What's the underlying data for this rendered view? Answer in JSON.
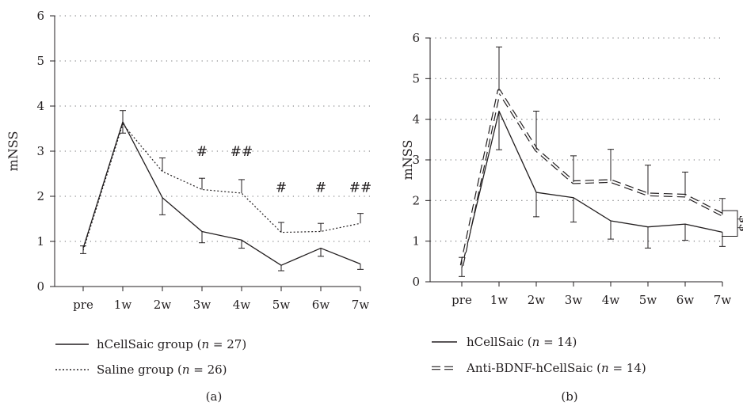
{
  "chart_data": [
    {
      "type": "line",
      "panel_label": "(a)",
      "ylabel": "mNSS",
      "xlabel": "",
      "categories": [
        "pre",
        "1w",
        "2w",
        "3w",
        "4w",
        "5w",
        "6w",
        "7w"
      ],
      "ylim": [
        0,
        6
      ],
      "yticks": [
        "0",
        "1",
        "2",
        "3",
        "4",
        "5",
        "6"
      ],
      "grid": "horizontal-dotted",
      "series": [
        {
          "name": "hCellSaic group (",
          "n_label": "n",
          "n_value": " = 27)",
          "style": "solid",
          "values": [
            0.85,
            3.65,
            1.97,
            1.22,
            1.03,
            0.47,
            0.85,
            0.5
          ],
          "errors": [
            0.12,
            0.25,
            0.38,
            0.25,
            0.18,
            0.12,
            0.18,
            0.12
          ],
          "error_dir": "down"
        },
        {
          "name": "Saline group (",
          "n_label": "n",
          "n_value": " = 26)",
          "style": "dotted",
          "values": [
            0.8,
            3.6,
            2.55,
            2.15,
            2.07,
            1.2,
            1.22,
            1.4
          ],
          "errors": [
            0.1,
            0.3,
            0.3,
            0.25,
            0.3,
            0.22,
            0.18,
            0.22
          ],
          "error_dir": "up"
        }
      ],
      "annotations": [
        {
          "text": "#",
          "x": "3w",
          "y": 3.0
        },
        {
          "text": "##",
          "x": "4w",
          "y": 3.0
        },
        {
          "text": "#",
          "x": "5w",
          "y": 2.2
        },
        {
          "text": "#",
          "x": "6w",
          "y": 2.2
        },
        {
          "text": "##",
          "x": "7w",
          "y": 2.2
        }
      ],
      "legend_position": "bottom"
    },
    {
      "type": "line",
      "panel_label": "(b)",
      "ylabel": "mNSS",
      "xlabel": "",
      "categories": [
        "pre",
        "1w",
        "2w",
        "3w",
        "4w",
        "5w",
        "6w",
        "7w"
      ],
      "ylim": [
        0,
        6
      ],
      "yticks": [
        "0",
        "1",
        "2",
        "3",
        "4",
        "5",
        "6"
      ],
      "grid": "horizontal-dotted",
      "series": [
        {
          "name": "hCellSaic (",
          "n_label": "n",
          "n_value": " = 14)",
          "style": "solid",
          "values": [
            0.35,
            4.2,
            2.2,
            2.07,
            1.5,
            1.35,
            1.42,
            1.22
          ],
          "errors": [
            0.22,
            0.95,
            0.6,
            0.6,
            0.45,
            0.52,
            0.4,
            0.35
          ],
          "error_dir": "down"
        },
        {
          "name": "Anti-BDNF-hCellSaic (",
          "n_label": "n",
          "n_value": " = 14)",
          "style": "double-dashed",
          "values": [
            0.4,
            4.7,
            3.25,
            2.45,
            2.48,
            2.15,
            2.12,
            1.65
          ],
          "errors": [
            0.2,
            1.08,
            0.95,
            0.65,
            0.78,
            0.72,
            0.58,
            0.4
          ],
          "error_dir": "up"
        }
      ],
      "annotations": [
        {
          "text": "$$",
          "x": "7w",
          "y": 1.42,
          "type": "bracket",
          "y_range": [
            1.12,
            1.75
          ]
        }
      ],
      "legend_position": "bottom"
    }
  ]
}
